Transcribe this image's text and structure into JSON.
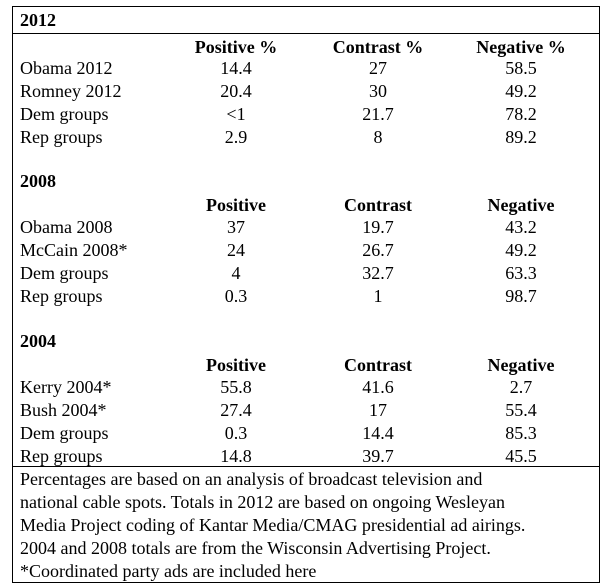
{
  "sections": [
    {
      "title": "2012",
      "headers": [
        "Positive %",
        "Contrast %",
        "Negative %"
      ],
      "rows": [
        {
          "label": "Obama 2012",
          "values": [
            "14.4",
            "27",
            "58.5"
          ]
        },
        {
          "label": "Romney 2012",
          "values": [
            "20.4",
            "30",
            "49.2"
          ]
        },
        {
          "label": "Dem groups",
          "values": [
            "<1",
            "21.7",
            "78.2"
          ]
        },
        {
          "label": "Rep groups",
          "values": [
            "2.9",
            "8",
            "89.2"
          ]
        }
      ]
    },
    {
      "title": "2008",
      "headers": [
        "Positive",
        "Contrast",
        "Negative"
      ],
      "rows": [
        {
          "label": "Obama 2008",
          "values": [
            "37",
            "19.7",
            "43.2"
          ]
        },
        {
          "label": "McCain 2008*",
          "values": [
            "24",
            "26.7",
            "49.2"
          ]
        },
        {
          "label": "Dem groups",
          "values": [
            "4",
            "32.7",
            "63.3"
          ]
        },
        {
          "label": "Rep groups",
          "values": [
            "0.3",
            "1",
            "98.7"
          ]
        }
      ]
    },
    {
      "title": "2004",
      "headers": [
        "Positive",
        "Contrast",
        "Negative"
      ],
      "rows": [
        {
          "label": "Kerry 2004*",
          "values": [
            "55.8",
            "41.6",
            "2.7"
          ]
        },
        {
          "label": "Bush 2004*",
          "values": [
            "27.4",
            "17",
            "55.4"
          ]
        },
        {
          "label": "Dem groups",
          "values": [
            "0.3",
            "14.4",
            "85.3"
          ]
        },
        {
          "label": "Rep groups",
          "values": [
            "14.8",
            "39.7",
            "45.5"
          ]
        }
      ]
    }
  ],
  "notes": [
    "Percentages are based on an analysis of broadcast television and",
    "national cable spots.  Totals in 2012 are based on ongoing Wesleyan",
    "Media Project coding of Kantar Media/CMAG presidential ad airings.",
    "2004 and 2008 totals are from the Wisconsin Advertising Project.",
    "*Coordinated party ads are included here"
  ]
}
